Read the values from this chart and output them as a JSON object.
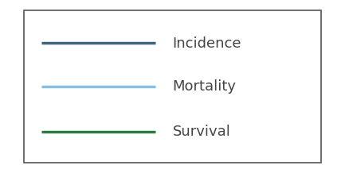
{
  "legend_items": [
    {
      "label": "Incidence",
      "color": "#3d6580",
      "linewidth": 2.5
    },
    {
      "label": "Mortality",
      "color": "#87c0e0",
      "linewidth": 2.5
    },
    {
      "label": "Survival",
      "color": "#2e7a45",
      "linewidth": 2.5
    }
  ],
  "background_color": "#ffffff",
  "box_edge_color": "#555555",
  "text_color": "#444444",
  "font_size": 13,
  "figsize": [
    4.33,
    2.18
  ],
  "dpi": 100
}
